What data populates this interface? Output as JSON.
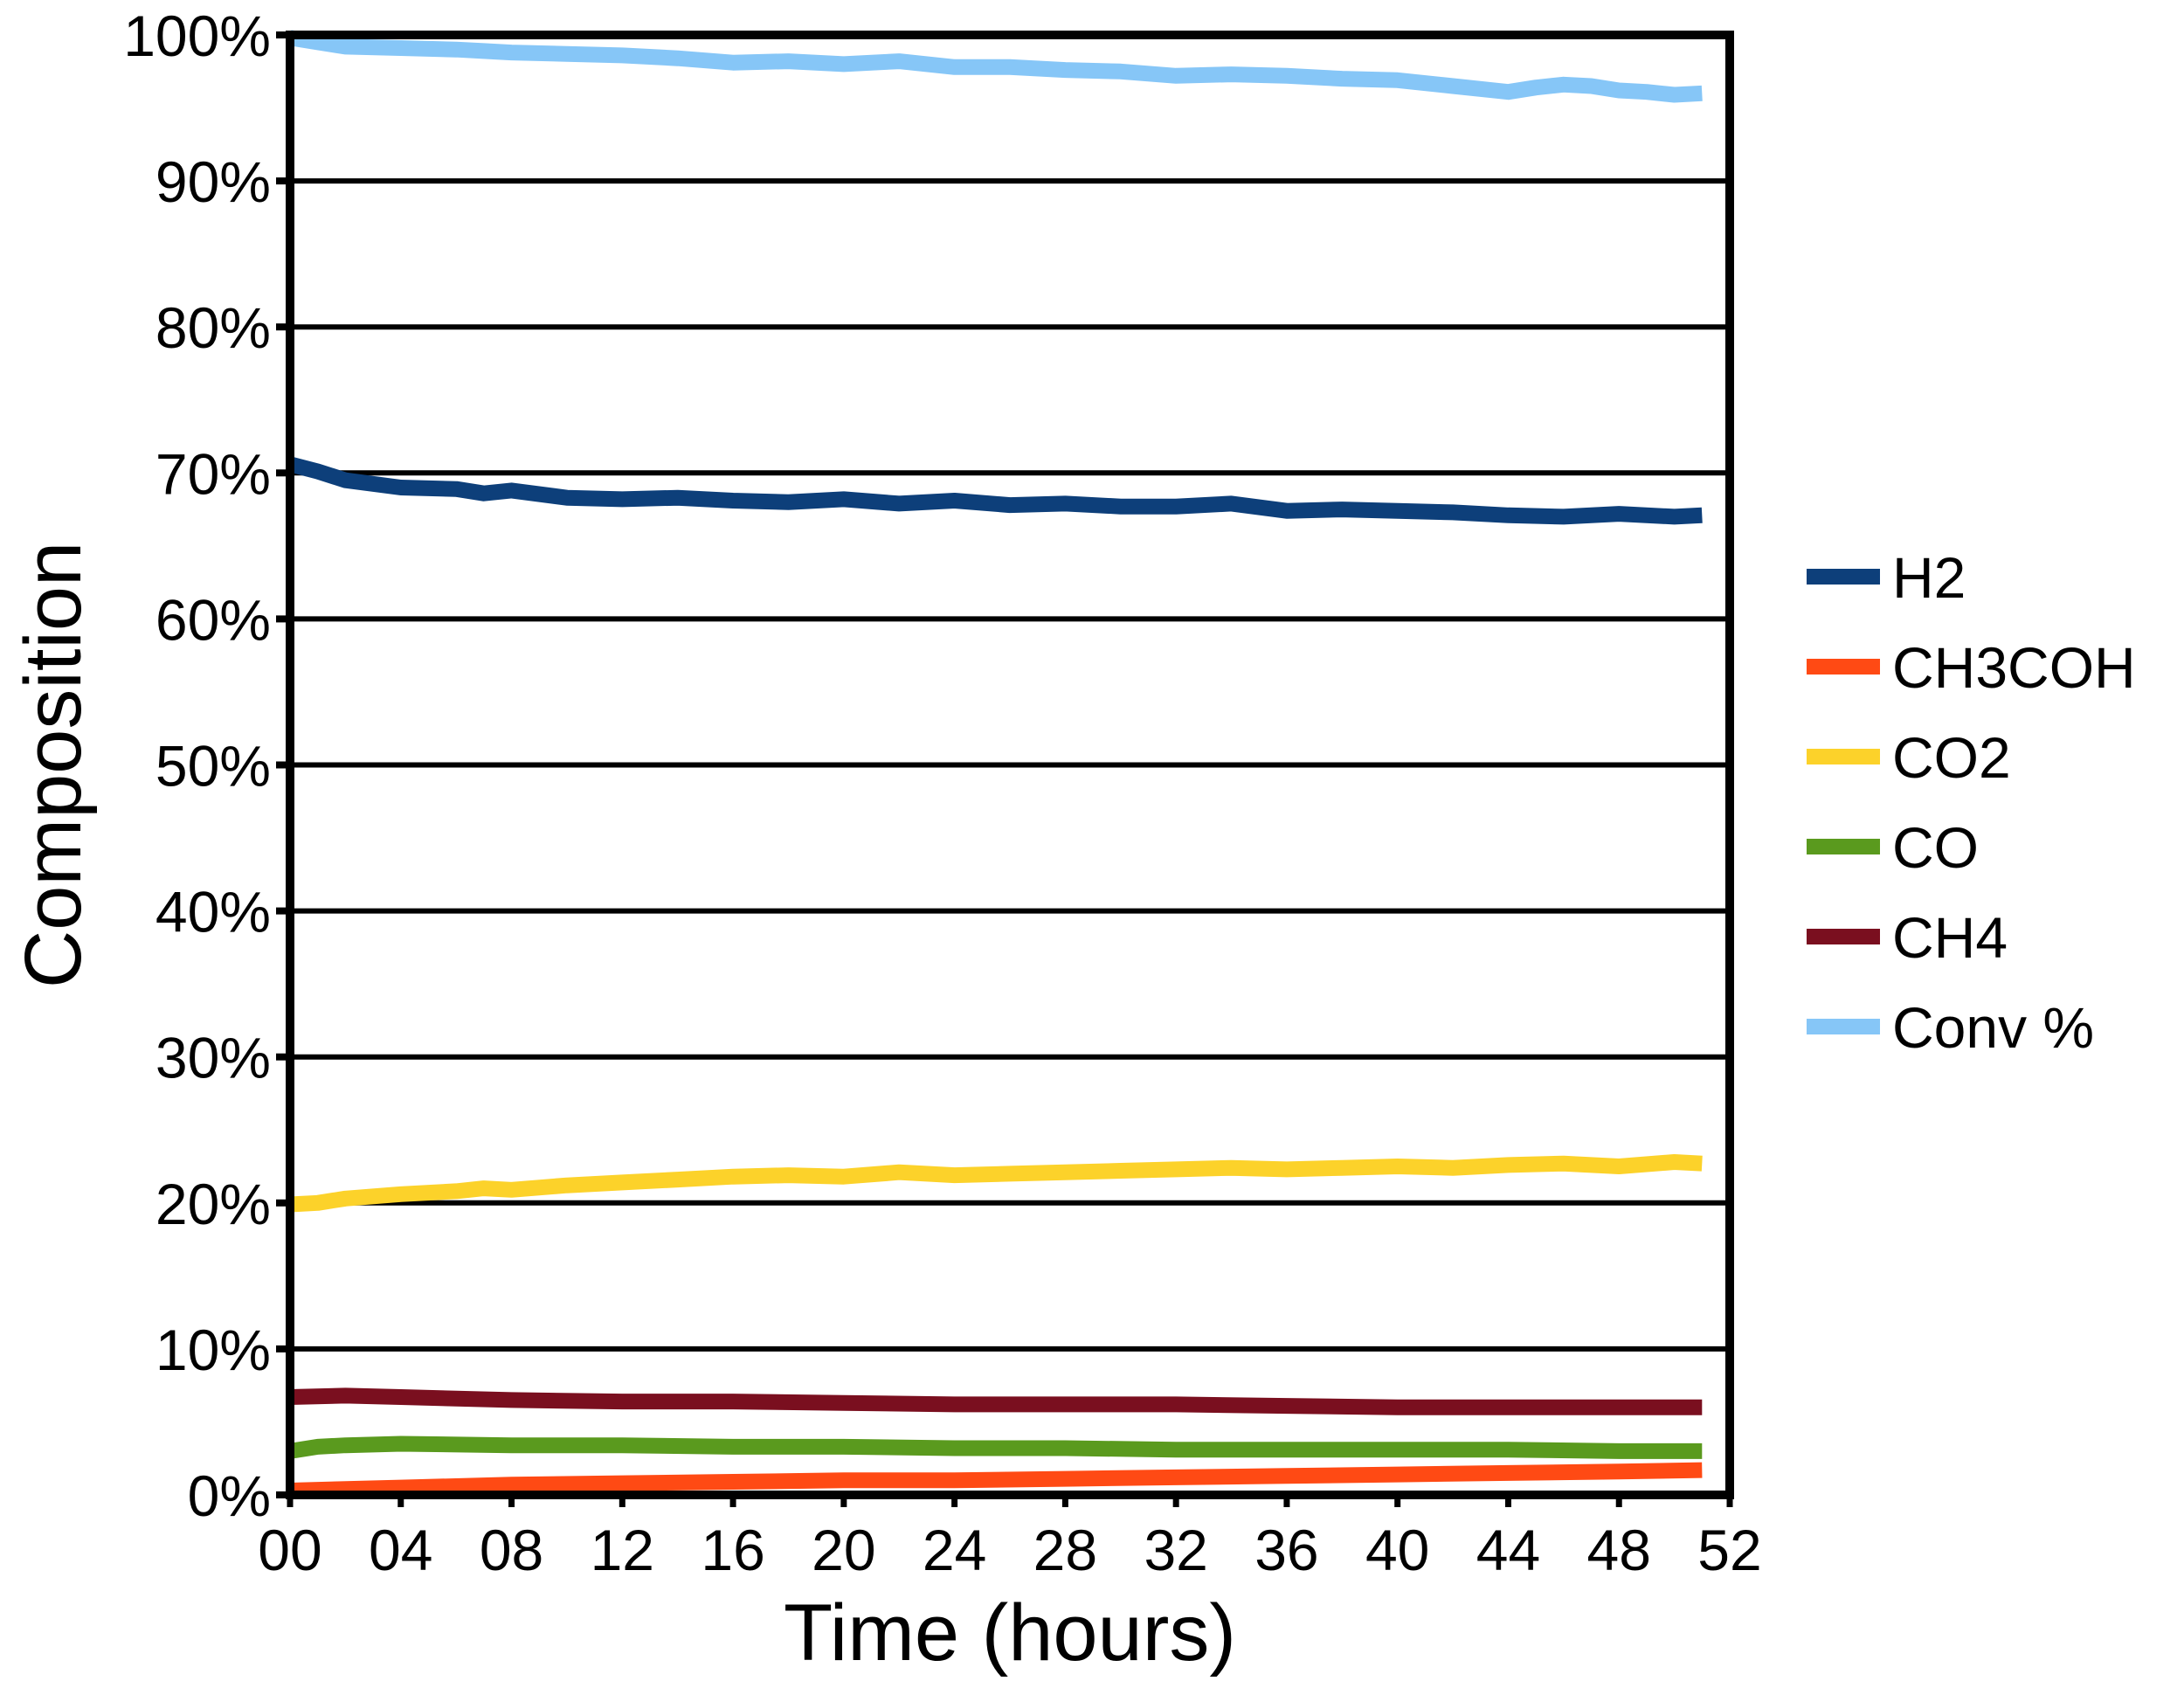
{
  "chart_data": {
    "type": "line",
    "xlabel": "Time (hours)",
    "ylabel": "Composition",
    "xlim": [
      0,
      52
    ],
    "ylim": [
      0,
      100
    ],
    "x_ticks": [
      "00",
      "04",
      "08",
      "12",
      "16",
      "20",
      "24",
      "28",
      "32",
      "36",
      "40",
      "44",
      "48",
      "52"
    ],
    "y_ticks": [
      "0%",
      "10%",
      "20%",
      "30%",
      "40%",
      "50%",
      "60%",
      "70%",
      "80%",
      "90%",
      "100%"
    ],
    "grid": "horizontal",
    "legend_position": "right",
    "series": [
      {
        "name": "H2",
        "color": "#0d3f7a",
        "x": [
          0,
          1,
          2,
          4,
          6,
          7,
          8,
          10,
          12,
          14,
          16,
          18,
          20,
          22,
          24,
          26,
          28,
          30,
          32,
          34,
          36,
          38,
          40,
          42,
          44,
          46,
          48,
          50,
          51
        ],
        "y": [
          70.6,
          70.1,
          69.5,
          69.0,
          68.9,
          68.6,
          68.8,
          68.3,
          68.2,
          68.3,
          68.1,
          68.0,
          68.2,
          67.9,
          68.1,
          67.8,
          67.9,
          67.7,
          67.7,
          67.9,
          67.4,
          67.5,
          67.4,
          67.3,
          67.1,
          67.0,
          67.2,
          67.0,
          67.1
        ]
      },
      {
        "name": "CH3COH",
        "color": "#ff4a14",
        "x": [
          0,
          4,
          8,
          12,
          16,
          20,
          24,
          28,
          32,
          36,
          40,
          44,
          48,
          51
        ],
        "y": [
          0.3,
          0.5,
          0.7,
          0.8,
          0.9,
          1.0,
          1.0,
          1.1,
          1.2,
          1.3,
          1.4,
          1.5,
          1.6,
          1.7
        ]
      },
      {
        "name": "CO2",
        "color": "#fcd22a",
        "x": [
          0,
          1,
          2,
          4,
          6,
          7,
          8,
          10,
          12,
          14,
          16,
          18,
          20,
          22,
          24,
          26,
          28,
          30,
          32,
          34,
          36,
          38,
          40,
          42,
          44,
          46,
          48,
          50,
          51
        ],
        "y": [
          19.9,
          20.0,
          20.3,
          20.6,
          20.8,
          21.0,
          20.9,
          21.2,
          21.4,
          21.6,
          21.8,
          21.9,
          21.8,
          22.1,
          21.9,
          22.0,
          22.1,
          22.2,
          22.3,
          22.4,
          22.3,
          22.4,
          22.5,
          22.4,
          22.6,
          22.7,
          22.5,
          22.8,
          22.7
        ]
      },
      {
        "name": "CO",
        "color": "#5a9a1e",
        "x": [
          0,
          1,
          2,
          4,
          8,
          12,
          16,
          20,
          24,
          28,
          32,
          36,
          40,
          44,
          48,
          51
        ],
        "y": [
          3.0,
          3.3,
          3.4,
          3.5,
          3.4,
          3.4,
          3.3,
          3.3,
          3.2,
          3.2,
          3.1,
          3.1,
          3.1,
          3.1,
          3.0,
          3.0
        ]
      },
      {
        "name": "CH4",
        "color": "#7a0f1f",
        "x": [
          0,
          2,
          4,
          8,
          12,
          16,
          20,
          24,
          28,
          32,
          36,
          40,
          44,
          48,
          51
        ],
        "y": [
          6.7,
          6.8,
          6.7,
          6.5,
          6.4,
          6.4,
          6.3,
          6.2,
          6.2,
          6.2,
          6.1,
          6.0,
          6.0,
          6.0,
          6.0
        ]
      },
      {
        "name": "Conv %",
        "color": "#86c6f7",
        "x": [
          0,
          1,
          2,
          4,
          6,
          7,
          8,
          10,
          12,
          14,
          16,
          18,
          20,
          22,
          24,
          26,
          28,
          30,
          32,
          34,
          36,
          38,
          40,
          42,
          44,
          45,
          46,
          47,
          48,
          49,
          50,
          51
        ],
        "y": [
          99.8,
          99.5,
          99.2,
          99.1,
          99.0,
          98.9,
          98.8,
          98.7,
          98.6,
          98.4,
          98.1,
          98.2,
          98.0,
          98.2,
          97.8,
          97.8,
          97.6,
          97.5,
          97.2,
          97.3,
          97.2,
          97.0,
          96.9,
          96.5,
          96.1,
          96.4,
          96.6,
          96.5,
          96.2,
          96.1,
          95.9,
          96.0
        ]
      }
    ]
  }
}
